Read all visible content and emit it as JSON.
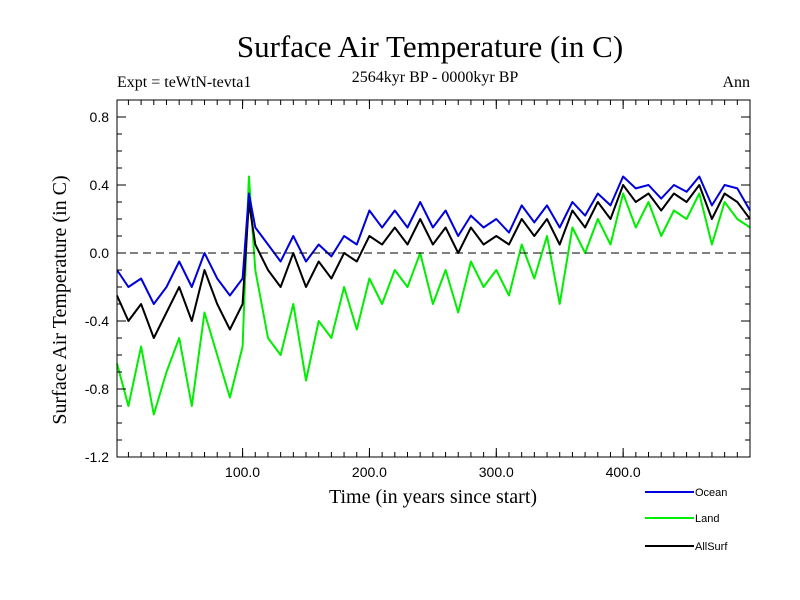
{
  "chart_data": {
    "type": "line",
    "title": "Surface Air Temperature (in C)",
    "subtitle_left": "Expt = teWtN-tevta1",
    "subtitle_center": "2564kyr BP - 0000kyr BP",
    "subtitle_right": "Ann",
    "xlabel": "Time (in years since start)",
    "ylabel": "Surface Air Temperature (in C)",
    "xlim": [
      1,
      500
    ],
    "ylim": [
      -1.2,
      0.9
    ],
    "x_ticks": [
      100,
      200,
      300,
      400
    ],
    "x_tick_labels": [
      "100.0",
      "200.0",
      "300.0",
      "400.0"
    ],
    "y_ticks": [
      0.8,
      0.4,
      0.0,
      -0.4,
      -0.8,
      -1.2
    ],
    "y_tick_labels": [
      "0.8",
      "0.4",
      "0.0",
      "-0.4",
      "-0.8",
      "-1.2"
    ],
    "reference_line": 0.0,
    "series": [
      {
        "name": "Land",
        "color": "#00ee00",
        "x": [
          1,
          10,
          20,
          30,
          40,
          50,
          60,
          70,
          80,
          90,
          100,
          105,
          110,
          120,
          130,
          140,
          150,
          160,
          170,
          180,
          190,
          200,
          210,
          220,
          230,
          240,
          250,
          260,
          270,
          280,
          290,
          300,
          310,
          320,
          330,
          340,
          350,
          360,
          370,
          380,
          390,
          400,
          410,
          420,
          430,
          440,
          450,
          460,
          470,
          480,
          490,
          500
        ],
        "values": [
          -0.65,
          -0.9,
          -0.55,
          -0.95,
          -0.7,
          -0.5,
          -0.9,
          -0.35,
          -0.6,
          -0.85,
          -0.55,
          0.45,
          -0.1,
          -0.5,
          -0.6,
          -0.3,
          -0.75,
          -0.4,
          -0.5,
          -0.2,
          -0.45,
          -0.15,
          -0.3,
          -0.1,
          -0.2,
          0.0,
          -0.3,
          -0.1,
          -0.35,
          -0.05,
          -0.2,
          -0.1,
          -0.25,
          0.05,
          -0.15,
          0.1,
          -0.3,
          0.15,
          0.0,
          0.2,
          0.05,
          0.35,
          0.15,
          0.3,
          0.1,
          0.25,
          0.2,
          0.35,
          0.05,
          0.3,
          0.2,
          0.15
        ]
      },
      {
        "name": "AllSurf",
        "color": "#000000",
        "x": [
          1,
          10,
          20,
          30,
          40,
          50,
          60,
          70,
          80,
          90,
          100,
          105,
          110,
          120,
          130,
          140,
          150,
          160,
          170,
          180,
          190,
          200,
          210,
          220,
          230,
          240,
          250,
          260,
          270,
          280,
          290,
          300,
          310,
          320,
          330,
          340,
          350,
          360,
          370,
          380,
          390,
          400,
          410,
          420,
          430,
          440,
          450,
          460,
          470,
          480,
          490,
          500
        ],
        "values": [
          -0.25,
          -0.4,
          -0.3,
          -0.5,
          -0.35,
          -0.2,
          -0.4,
          -0.1,
          -0.3,
          -0.45,
          -0.3,
          0.3,
          0.05,
          -0.1,
          -0.2,
          0.0,
          -0.2,
          -0.05,
          -0.15,
          0.0,
          -0.05,
          0.1,
          0.05,
          0.15,
          0.05,
          0.2,
          0.05,
          0.15,
          0.0,
          0.15,
          0.05,
          0.1,
          0.05,
          0.2,
          0.1,
          0.2,
          0.05,
          0.25,
          0.15,
          0.3,
          0.2,
          0.4,
          0.3,
          0.35,
          0.25,
          0.35,
          0.3,
          0.4,
          0.2,
          0.35,
          0.3,
          0.2
        ]
      },
      {
        "name": "Ocean",
        "color": "#0000dd",
        "x": [
          1,
          10,
          20,
          30,
          40,
          50,
          60,
          70,
          80,
          90,
          100,
          105,
          110,
          120,
          130,
          140,
          150,
          160,
          170,
          180,
          190,
          200,
          210,
          220,
          230,
          240,
          250,
          260,
          270,
          280,
          290,
          300,
          310,
          320,
          330,
          340,
          350,
          360,
          370,
          380,
          390,
          400,
          410,
          420,
          430,
          440,
          450,
          460,
          470,
          480,
          490,
          500
        ],
        "values": [
          -0.1,
          -0.2,
          -0.15,
          -0.3,
          -0.2,
          -0.05,
          -0.2,
          0.0,
          -0.15,
          -0.25,
          -0.15,
          0.35,
          0.15,
          0.05,
          -0.05,
          0.1,
          -0.05,
          0.05,
          -0.02,
          0.1,
          0.05,
          0.25,
          0.15,
          0.25,
          0.15,
          0.3,
          0.15,
          0.25,
          0.1,
          0.22,
          0.15,
          0.2,
          0.12,
          0.28,
          0.18,
          0.28,
          0.15,
          0.3,
          0.22,
          0.35,
          0.28,
          0.45,
          0.38,
          0.4,
          0.32,
          0.4,
          0.36,
          0.45,
          0.28,
          0.4,
          0.38,
          0.25
        ]
      }
    ],
    "legend": [
      {
        "label": "Ocean",
        "color": "#0000dd"
      },
      {
        "label": "Land",
        "color": "#00ee00"
      },
      {
        "label": "AllSurf",
        "color": "#000000"
      }
    ]
  }
}
